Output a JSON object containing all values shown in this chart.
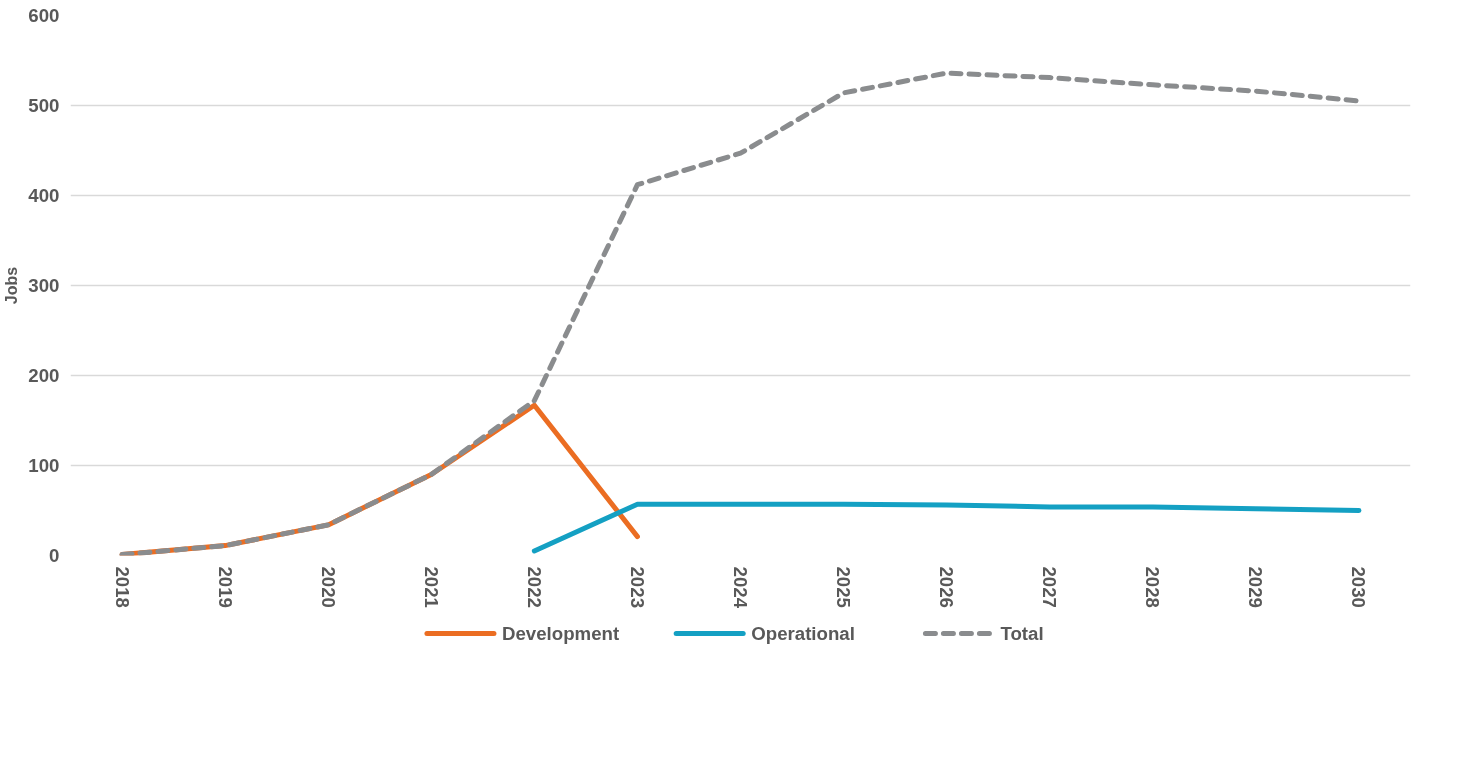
{
  "chart_data": {
    "type": "line",
    "ylabel": "Jobs",
    "categories": [
      "2018",
      "2019",
      "2020",
      "2021",
      "2022",
      "2023",
      "2024",
      "2025",
      "2026",
      "2027",
      "2028",
      "2029",
      "2030"
    ],
    "series": [
      {
        "name": "Development",
        "color": "#eb6d22",
        "values": [
          1,
          11,
          34,
          90,
          167,
          21,
          null,
          null,
          null,
          null,
          null,
          null,
          null
        ]
      },
      {
        "name": "Operational",
        "color": "#14a0c3",
        "values": [
          null,
          null,
          null,
          null,
          5,
          57,
          57,
          57,
          56,
          54,
          54,
          52,
          50
        ]
      },
      {
        "name": "Total",
        "color": "#8a8c8e",
        "line_style": "dashed",
        "values": [
          1,
          11,
          34,
          90,
          172,
          412,
          447,
          514,
          536,
          531,
          523,
          516,
          505
        ]
      }
    ],
    "ylim": [
      0,
      600
    ],
    "yticks": [
      0,
      100,
      200,
      300,
      400,
      500,
      600
    ],
    "grid": "y",
    "legend": "bottom",
    "line_style": "solid"
  }
}
